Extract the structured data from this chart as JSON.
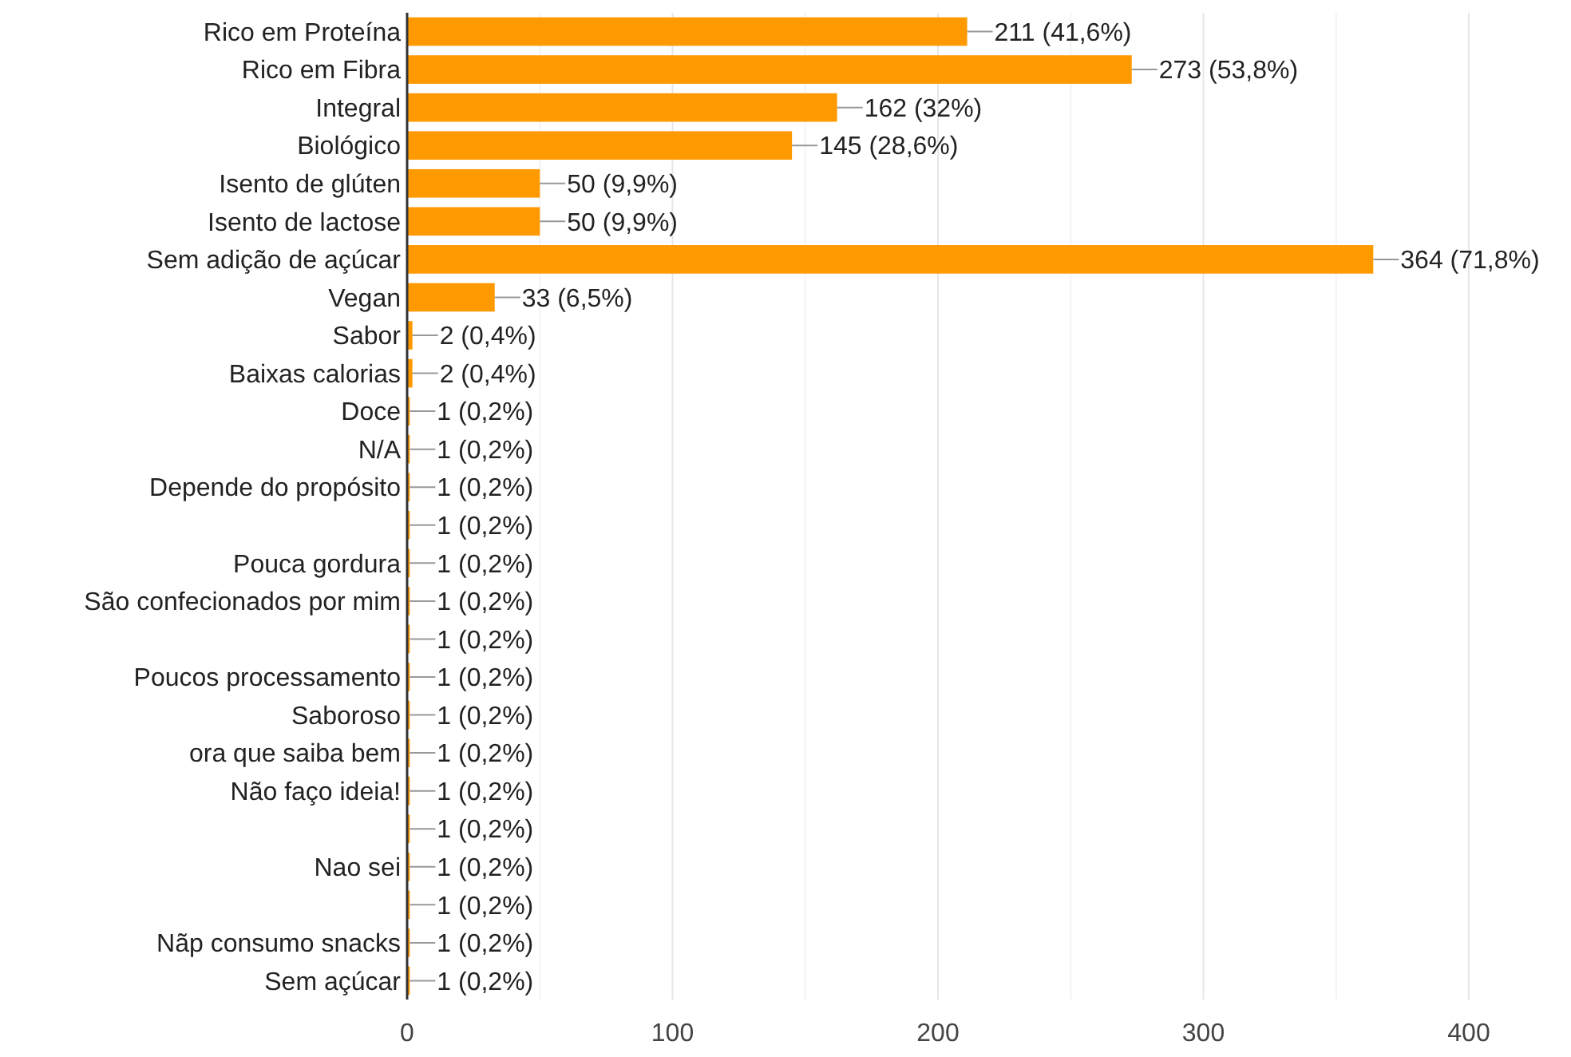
{
  "chart_data": {
    "type": "bar",
    "orientation": "horizontal",
    "categories": [
      "Rico em Proteína",
      "Rico em Fibra",
      "Integral",
      "Biológico",
      "Isento de glúten",
      "Isento de lactose",
      "Sem adição de açúcar",
      "Vegan",
      "Sabor",
      "Baixas calorias",
      "Doce",
      "N/A",
      "Depende do propósito",
      null,
      "Pouca gordura",
      "São confecionados por mim",
      null,
      "Poucos processamento",
      "Saboroso",
      "ora que saiba bem",
      "Não faço ideia!",
      null,
      "Nao sei",
      null,
      "Nãp consumo snacks",
      "Sem açúcar"
    ],
    "values": [
      211,
      273,
      162,
      145,
      50,
      50,
      364,
      33,
      2,
      2,
      1,
      1,
      1,
      1,
      1,
      1,
      1,
      1,
      1,
      1,
      1,
      1,
      1,
      1,
      1,
      1
    ],
    "value_labels": [
      "211 (41,6%)",
      "273 (53,8%)",
      "162 (32%)",
      "145 (28,6%)",
      "50 (9,9%)",
      "50 (9,9%)",
      "364 (71,8%)",
      "33 (6,5%)",
      "2 (0,4%)",
      "2 (0,4%)",
      "1 (0,2%)",
      "1 (0,2%)",
      "1 (0,2%)",
      "1 (0,2%)",
      "1 (0,2%)",
      "1 (0,2%)",
      "1 (0,2%)",
      "1 (0,2%)",
      "1 (0,2%)",
      "1 (0,2%)",
      "1 (0,2%)",
      "1 (0,2%)",
      "1 (0,2%)",
      "1 (0,2%)",
      "1 (0,2%)",
      "1 (0,2%)"
    ],
    "color": "#ff9900",
    "xlim": [
      0,
      400
    ],
    "xticks": [
      0,
      {
        "value": 50,
        "label": null
      },
      100,
      {
        "value": 150,
        "label": null
      },
      200,
      {
        "value": 250,
        "label": null
      },
      300,
      {
        "value": 350,
        "label": null
      },
      400
    ],
    "grid": "x"
  }
}
